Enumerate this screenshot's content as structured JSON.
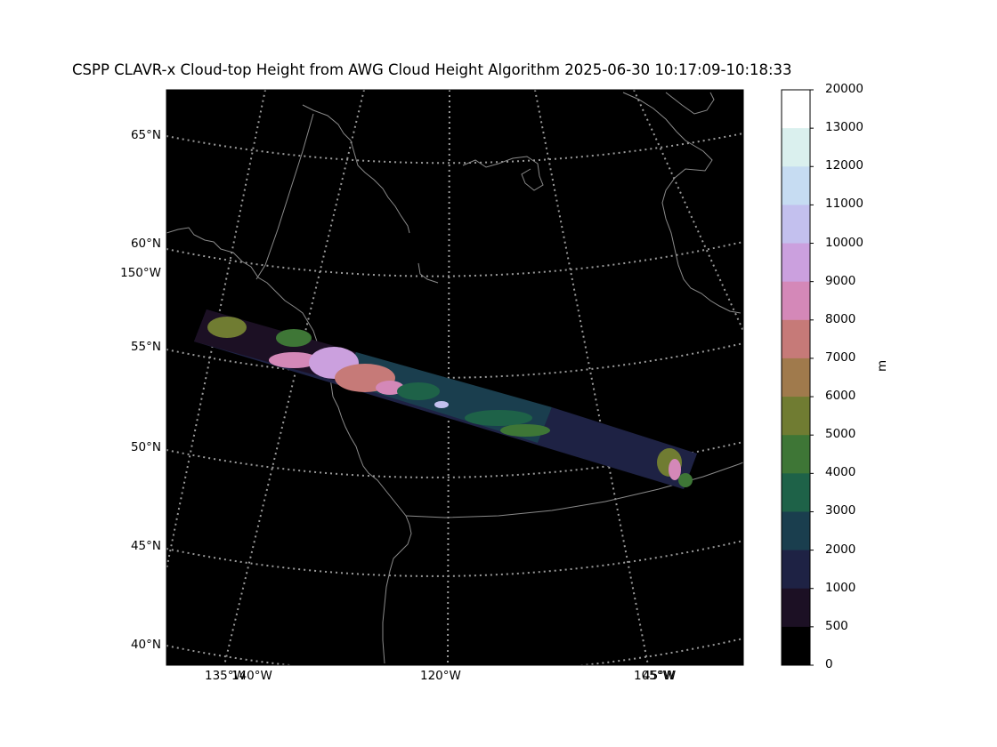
{
  "title": "CSPP CLAVR-x Cloud-top Height from AWG Cloud Height Algorithm 2025-06-30 10:17:09-10:18:33",
  "lat_labels": [
    "65°N",
    "60°N",
    "55°N",
    "50°N",
    "45°N",
    "40°N"
  ],
  "lon_labels": {
    "left_150": "150°W",
    "bottom": [
      "135°W",
      "140°W",
      "120°W",
      "105°W",
      "45°W"
    ]
  },
  "colorbar": {
    "unit": "m",
    "ticks": [
      "20000",
      "13000",
      "12000",
      "11000",
      "10000",
      "9000",
      "8000",
      "7000",
      "6000",
      "5000",
      "4000",
      "3000",
      "2000",
      "1000",
      "500",
      "0"
    ],
    "colors": [
      "#ffffff",
      "#daf0ee",
      "#c6dcf2",
      "#c3c0ee",
      "#cba0de",
      "#d488b8",
      "#c67a78",
      "#a07a4c",
      "#707c32",
      "#3e7636",
      "#1e6248",
      "#1a3e4e",
      "#1e2244",
      "#1c1024",
      "#000000"
    ]
  },
  "map": {
    "background": "#000000",
    "coastline_color": "#888888",
    "gridline_color": "#aaaaaa"
  }
}
